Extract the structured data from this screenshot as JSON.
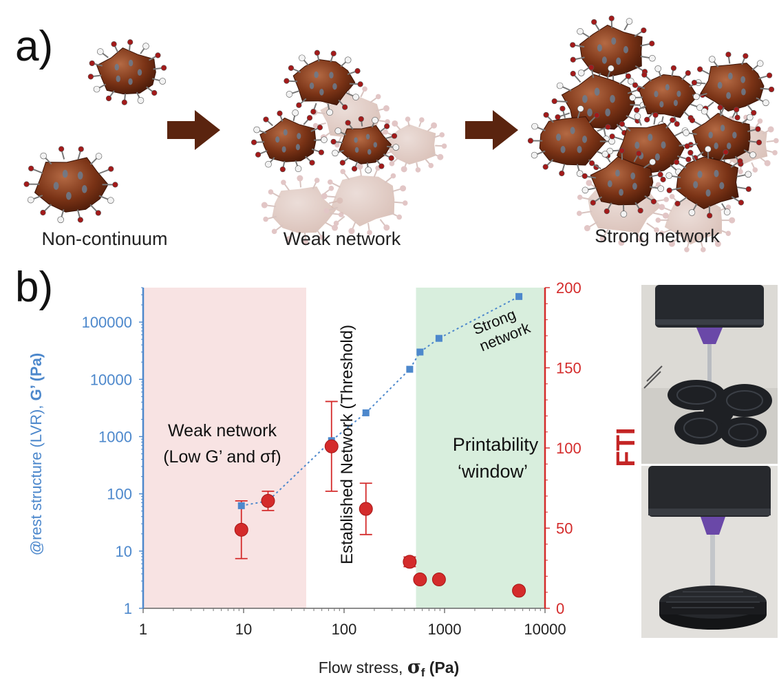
{
  "panel_a": {
    "label": "a)",
    "stages": [
      {
        "name": "Non-continuum"
      },
      {
        "name": "Weak network"
      },
      {
        "name": "Strong network"
      }
    ]
  },
  "panel_b": {
    "label": "b)",
    "regions": {
      "weak": "Weak network",
      "weak_sub": "(Low G’ and σf)",
      "threshold": "Established Network (Threshold)",
      "printability_line1": "Printability",
      "printability_line2": "‘window’",
      "strong_line1": "Strong",
      "strong_line2": "network"
    },
    "colors": {
      "gprime": "#4d88cc",
      "fti": "#d42b2b",
      "weak_region": "#f8e3e3",
      "window_region": "#d8eedd"
    }
  },
  "chart_data": {
    "type": "scatter",
    "xlabel": "Flow stress, σf (Pa)",
    "xlabel_prefix": "Flow stress, ",
    "xlabel_symbol": "σ",
    "xlabel_sub": "f",
    "xlabel_unit": " (Pa)",
    "ylabel_left": "@rest structure (LVR), G’ (Pa)",
    "ylabel_left_main": "@rest structure (LVR), ",
    "ylabel_left_g": "G’ (Pa)",
    "ylabel_right": "FTI",
    "x_scale": "log",
    "xlim": [
      1,
      10000
    ],
    "x_ticks": [
      "1",
      "10",
      "100",
      "1000",
      "10000"
    ],
    "y_left_scale": "log",
    "y_left_lim": [
      1,
      400000
    ],
    "y_left_ticks": [
      "1",
      "10",
      "100",
      "1000",
      "10000",
      "100000"
    ],
    "y_right_lim": [
      0,
      200
    ],
    "y_right_ticks": [
      "0",
      "50",
      "100",
      "150",
      "200"
    ],
    "regions": [
      {
        "label": "Weak network",
        "x_range": [
          1,
          42
        ]
      },
      {
        "label": "Established Network (Threshold)",
        "x_range": [
          42,
          520
        ]
      },
      {
        "label": "Printability window",
        "x_range": [
          520,
          10000
        ]
      }
    ],
    "series": [
      {
        "name": "G’",
        "axis": "left",
        "marker": "square",
        "x": [
          9.5,
          17.5,
          75,
          165,
          450,
          570,
          880,
          5500
        ],
        "y": [
          62,
          75,
          850,
          2600,
          15000,
          30000,
          52000,
          280000
        ]
      },
      {
        "name": "FTI",
        "axis": "right",
        "marker": "circle",
        "x": [
          9.5,
          17.5,
          75,
          165,
          450,
          570,
          880,
          5500
        ],
        "y": [
          49,
          67,
          101,
          62,
          29,
          18,
          18,
          11
        ],
        "err": [
          18,
          6,
          28,
          16,
          3,
          1,
          1,
          1
        ]
      }
    ]
  }
}
